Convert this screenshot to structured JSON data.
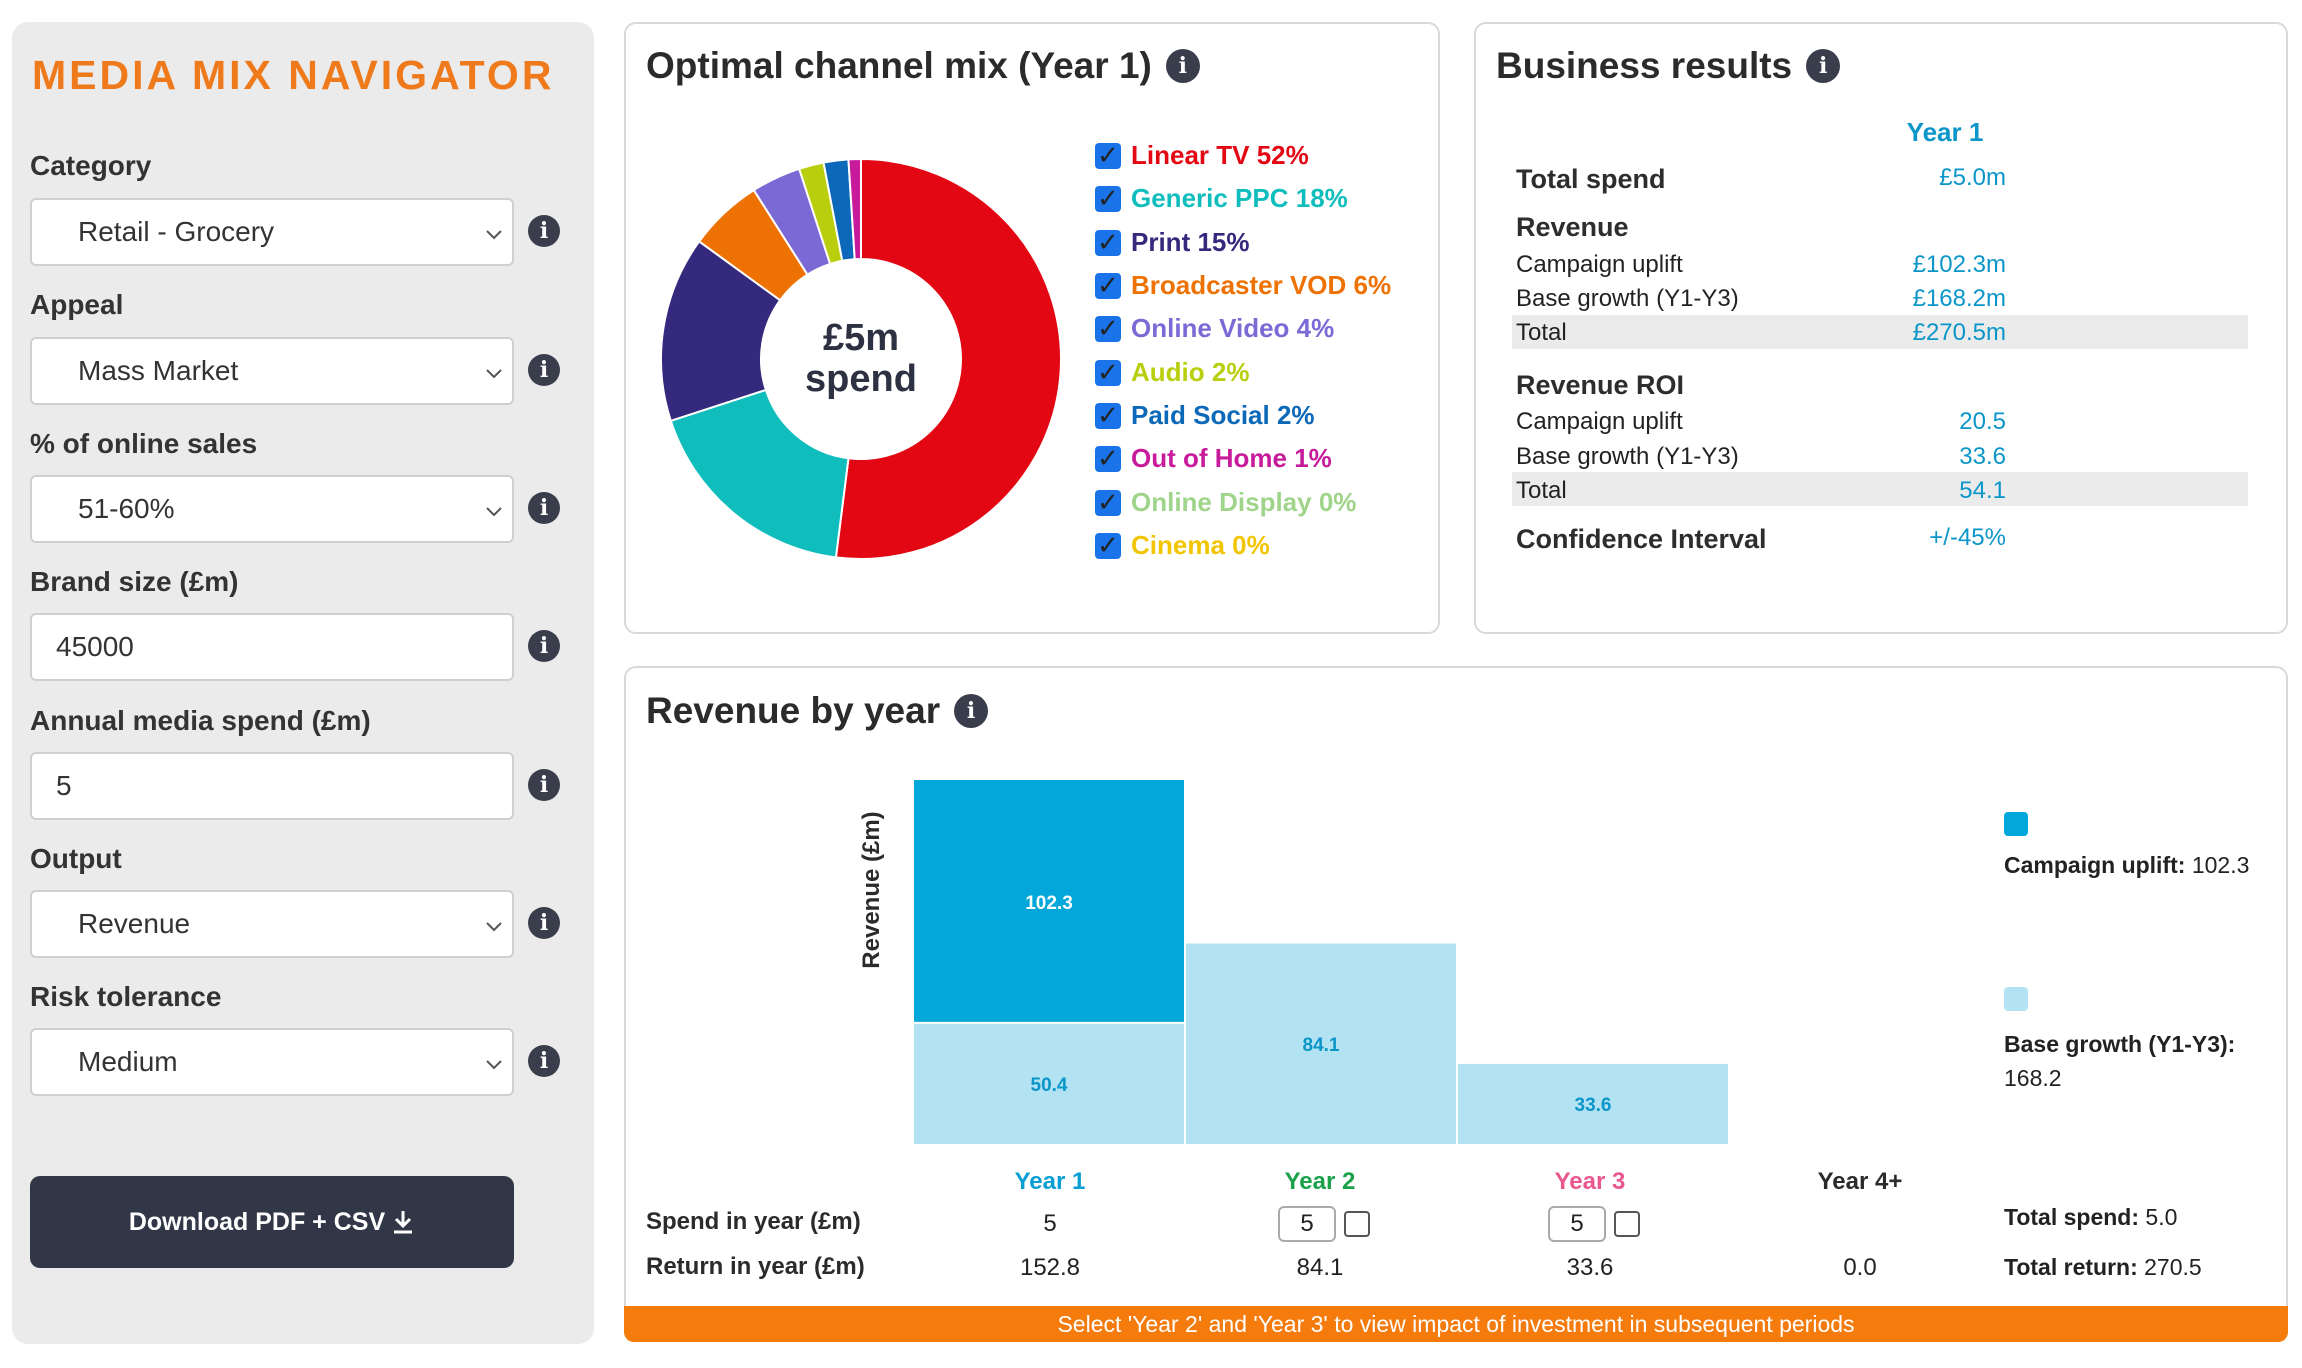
{
  "sidebar": {
    "title": "MEDIA MIX NAVIGATOR",
    "fields": [
      {
        "label": "Category",
        "value": "Retail - Grocery",
        "type": "select"
      },
      {
        "label": "Appeal",
        "value": "Mass Market",
        "type": "select"
      },
      {
        "label": "% of online sales",
        "value": "51-60%",
        "type": "select"
      },
      {
        "label": "Brand size (£m)",
        "value": "45000",
        "type": "input"
      },
      {
        "label": "Annual media spend (£m)",
        "value": "5",
        "type": "input"
      },
      {
        "label": "Output",
        "value": "Revenue",
        "type": "select"
      },
      {
        "label": "Risk tolerance",
        "value": "Medium",
        "type": "select"
      }
    ],
    "download_label": "Download PDF + CSV"
  },
  "channel_mix": {
    "title": "Optimal channel mix (Year 1)",
    "center_line1": "£5m",
    "center_line2": "spend",
    "legend": [
      {
        "label": "Linear TV 52%",
        "color": "#e30613"
      },
      {
        "label": "Generic PPC 18%",
        "color": "#10bdbd"
      },
      {
        "label": "Print 15%",
        "color": "#35297d"
      },
      {
        "label": "Broadcaster VOD 6%",
        "color": "#ee7203"
      },
      {
        "label": "Online Video 4%",
        "color": "#7b6ad6"
      },
      {
        "label": "Audio 2%",
        "color": "#b9cf0e"
      },
      {
        "label": "Paid Social 2%",
        "color": "#0c68b8"
      },
      {
        "label": "Out of Home 1%",
        "color": "#c81b9b"
      },
      {
        "label": "Online Display 0%",
        "color": "#9fd48a"
      },
      {
        "label": "Cinema 0%",
        "color": "#f2c500"
      }
    ]
  },
  "business_results": {
    "title": "Business results",
    "year_header": "Year 1",
    "total_spend_label": "Total spend",
    "total_spend_value": "£5.0m",
    "revenue_label": "Revenue",
    "revenue_rows": [
      {
        "label": "Campaign uplift",
        "value": "£102.3m"
      },
      {
        "label": "Base growth (Y1-Y3)",
        "value": "£168.2m"
      },
      {
        "label": "Total",
        "value": "£270.5m"
      }
    ],
    "roi_label": "Revenue ROI",
    "roi_rows": [
      {
        "label": "Campaign uplift",
        "value": "20.5"
      },
      {
        "label": "Base growth (Y1-Y3)",
        "value": "33.6"
      },
      {
        "label": "Total",
        "value": "54.1"
      }
    ],
    "ci_label": "Confidence Interval",
    "ci_value": "+/-45%"
  },
  "revenue_by_year": {
    "title": "Revenue by year",
    "ylabel": "Revenue (£m)",
    "years": [
      {
        "label": "Year 1",
        "color": "#0a9fd4"
      },
      {
        "label": "Year 2",
        "color": "#1aa14a"
      },
      {
        "label": "Year 3",
        "color": "#e8588f"
      },
      {
        "label": "Year 4+",
        "color": "#2b2b2b"
      }
    ],
    "spend_label": "Spend in year (£m)",
    "return_label": "Return in year (£m)",
    "spend": [
      "5",
      "5",
      "5"
    ],
    "returns": [
      "152.8",
      "84.1",
      "33.6",
      "0.0"
    ],
    "legend_uplift_label": "Campaign uplift:",
    "legend_uplift_value": "102.3",
    "legend_base_label": "Base growth (Y1-Y3):",
    "legend_base_value": "168.2",
    "total_spend_label": "Total spend:",
    "total_spend_value": "5.0",
    "total_return_label": "Total return:",
    "total_return_value": "270.5",
    "footer": "Select 'Year 2' and 'Year 3' to view impact of investment in subsequent periods"
  },
  "chart_data": [
    {
      "type": "pie",
      "title": "Optimal channel mix (Year 1)",
      "categories": [
        "Linear TV",
        "Generic PPC",
        "Print",
        "Broadcaster VOD",
        "Online Video",
        "Audio",
        "Paid Social",
        "Out of Home",
        "Online Display",
        "Cinema"
      ],
      "values": [
        52,
        18,
        15,
        6,
        4,
        2,
        2,
        1,
        0,
        0
      ],
      "colors": [
        "#e30613",
        "#10bdbd",
        "#35297d",
        "#ee7203",
        "#7b6ad6",
        "#b9cf0e",
        "#0c68b8",
        "#c81b9b",
        "#9fd48a",
        "#f2c500"
      ]
    },
    {
      "type": "bar",
      "title": "Revenue by year",
      "ylabel": "Revenue (£m)",
      "categories": [
        "Year 1",
        "Year 2",
        "Year 3"
      ],
      "series": [
        {
          "name": "Base growth (Y1-Y3)",
          "values": [
            50.4,
            84.1,
            33.6
          ],
          "color": "#b3e2f2"
        },
        {
          "name": "Campaign uplift",
          "values": [
            102.3,
            0,
            0
          ],
          "color": "#03a7d9"
        }
      ],
      "ylim": [
        0,
        160
      ]
    }
  ]
}
